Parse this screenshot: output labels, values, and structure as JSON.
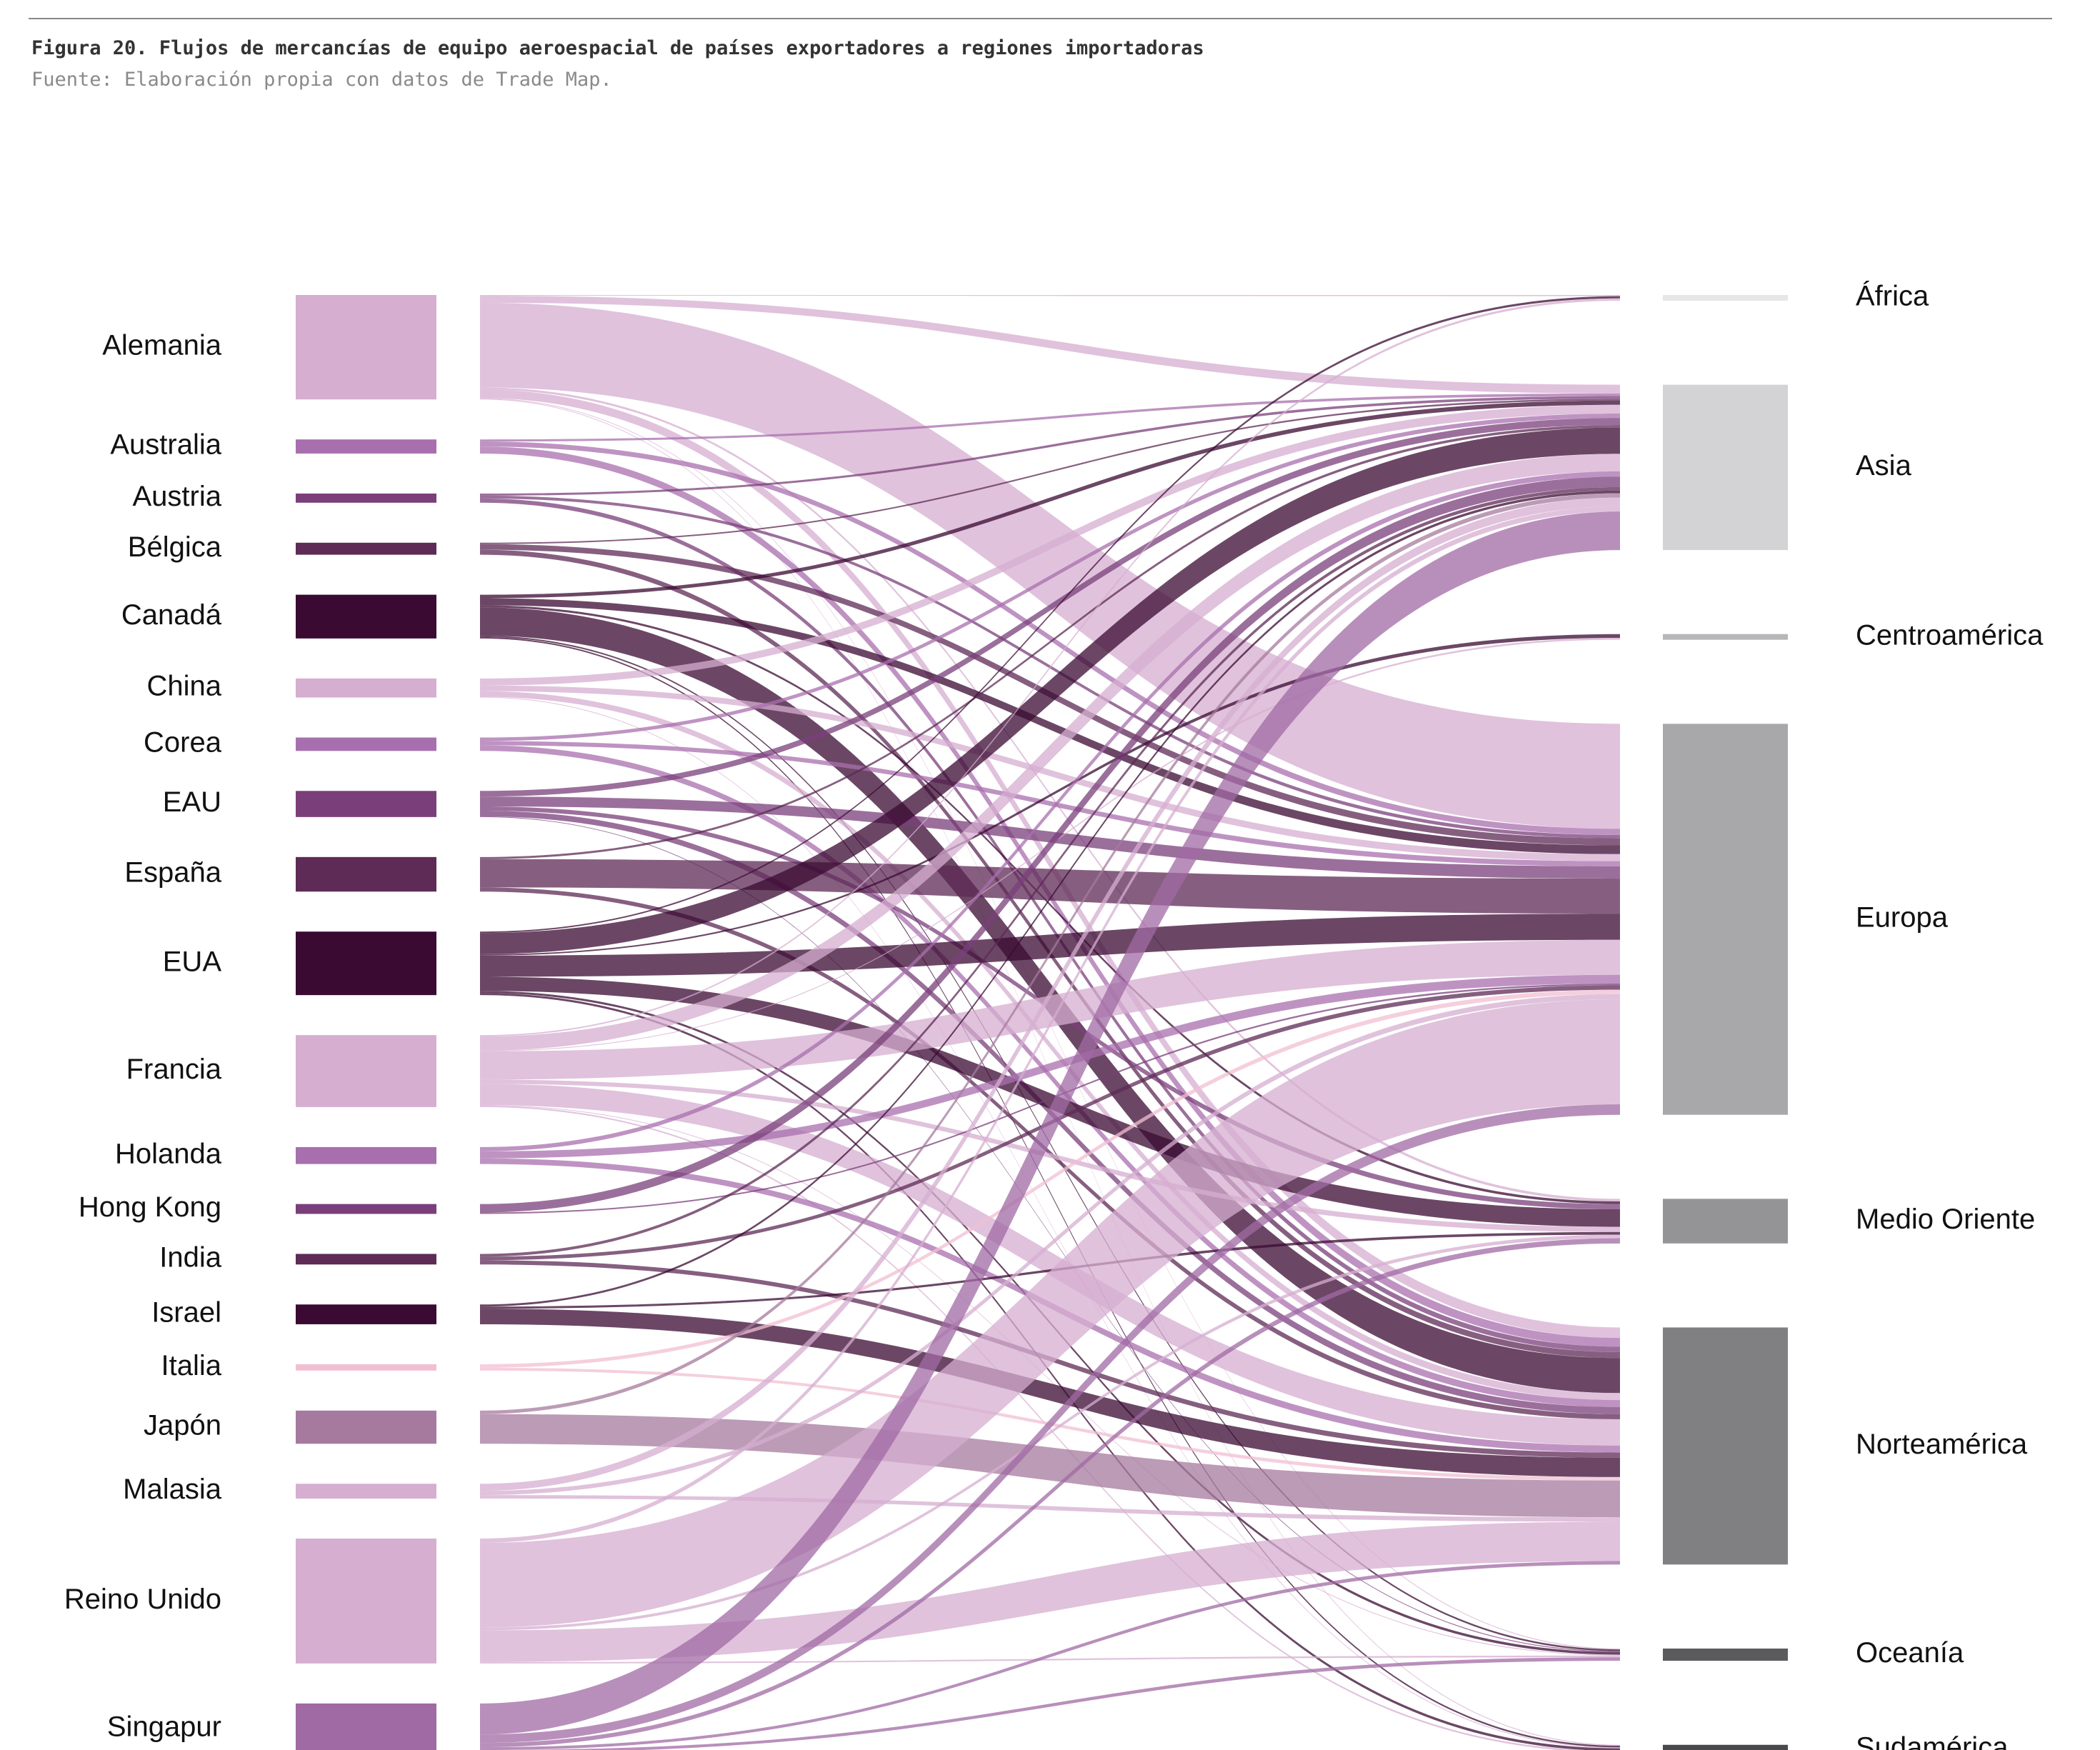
{
  "figure": {
    "title": "Figura 20. Flujos de mercancías de equipo aeroespacial de países exportadores a regiones importadoras",
    "source": "Fuente: Elaboración propia con datos de Trade Map."
  },
  "sources": [
    {
      "name": "Alemania",
      "color": "#d6aed0"
    },
    {
      "name": "Australia",
      "color": "#a86fae"
    },
    {
      "name": "Austria",
      "color": "#7a3f7a"
    },
    {
      "name": "Bélgica",
      "color": "#5e2a56"
    },
    {
      "name": "Canadá",
      "color": "#3a0a32"
    },
    {
      "name": "China",
      "color": "#d6aed0"
    },
    {
      "name": "Corea",
      "color": "#a86fae"
    },
    {
      "name": "EAU",
      "color": "#7a3f7a"
    },
    {
      "name": "España",
      "color": "#5e2a56"
    },
    {
      "name": "EUA",
      "color": "#3a0a32"
    },
    {
      "name": "Francia",
      "color": "#d6aed0"
    },
    {
      "name": "Holanda",
      "color": "#a86fae"
    },
    {
      "name": "Hong Kong",
      "color": "#7a3f7a"
    },
    {
      "name": "India",
      "color": "#5e2a56"
    },
    {
      "name": "Israel",
      "color": "#3a0a32"
    },
    {
      "name": "Italia",
      "color": "#f2bfd2"
    },
    {
      "name": "Japón",
      "color": "#a57a9e"
    },
    {
      "name": "Malasia",
      "color": "#d6aed0"
    },
    {
      "name": "Reino Unido",
      "color": "#d6aed0"
    },
    {
      "name": "Singapur",
      "color": "#a06aa4"
    }
  ],
  "targets": [
    {
      "name": "África",
      "color": "#e6e6e6"
    },
    {
      "name": "Asia",
      "color": "#d3d3d5"
    },
    {
      "name": "Centroamérica",
      "color": "#b7b7b9"
    },
    {
      "name": "Europa",
      "color": "#a8a8ab"
    },
    {
      "name": "Medio Oriente",
      "color": "#949497"
    },
    {
      "name": "Norteamérica",
      "color": "#808083"
    },
    {
      "name": "Oceanía",
      "color": "#5b5b5d"
    },
    {
      "name": "Sudamérica",
      "color": "#4a4a4c"
    }
  ],
  "flows": [
    {
      "source": "Alemania",
      "target": "África",
      "value": 1
    },
    {
      "source": "Alemania",
      "target": "Asia",
      "value": 10
    },
    {
      "source": "Alemania",
      "target": "Europa",
      "value": 120
    },
    {
      "source": "Alemania",
      "target": "Medio Oriente",
      "value": 3
    },
    {
      "source": "Alemania",
      "target": "Norteamérica",
      "value": 12
    },
    {
      "source": "Alemania",
      "target": "Oceanía",
      "value": 1
    },
    {
      "source": "Alemania",
      "target": "Sudamérica",
      "value": 1
    },
    {
      "source": "Australia",
      "target": "Asia",
      "value": 3
    },
    {
      "source": "Australia",
      "target": "Europa",
      "value": 7
    },
    {
      "source": "Australia",
      "target": "Norteamérica",
      "value": 10
    },
    {
      "source": "Austria",
      "target": "Asia",
      "value": 3
    },
    {
      "source": "Austria",
      "target": "Europa",
      "value": 4
    },
    {
      "source": "Austria",
      "target": "Norteamérica",
      "value": 6
    },
    {
      "source": "Bélgica",
      "target": "Asia",
      "value": 2
    },
    {
      "source": "Bélgica",
      "target": "Europa",
      "value": 8
    },
    {
      "source": "Bélgica",
      "target": "Norteamérica",
      "value": 7
    },
    {
      "source": "Canadá",
      "target": "Asia",
      "value": 5
    },
    {
      "source": "Canadá",
      "target": "Europa",
      "value": 10
    },
    {
      "source": "Canadá",
      "target": "Medio Oriente",
      "value": 3
    },
    {
      "source": "Canadá",
      "target": "Norteamérica",
      "value": 40
    },
    {
      "source": "Canadá",
      "target": "Oceanía",
      "value": 2
    },
    {
      "source": "Canadá",
      "target": "Sudamérica",
      "value": 2
    },
    {
      "source": "China",
      "target": "Asia",
      "value": 10
    },
    {
      "source": "China",
      "target": "Europa",
      "value": 8
    },
    {
      "source": "China",
      "target": "Norteamérica",
      "value": 8
    },
    {
      "source": "China",
      "target": "Sudamérica",
      "value": 1
    },
    {
      "source": "Corea",
      "target": "Asia",
      "value": 5
    },
    {
      "source": "Corea",
      "target": "Europa",
      "value": 6
    },
    {
      "source": "Corea",
      "target": "Norteamérica",
      "value": 8
    },
    {
      "source": "EAU",
      "target": "Asia",
      "value": 8
    },
    {
      "source": "EAU",
      "target": "Europa",
      "value": 14
    },
    {
      "source": "EAU",
      "target": "Medio Oriente",
      "value": 6
    },
    {
      "source": "EAU",
      "target": "Norteamérica",
      "value": 8
    },
    {
      "source": "EAU",
      "target": "Oceanía",
      "value": 1
    },
    {
      "source": "España",
      "target": "Asia",
      "value": 3
    },
    {
      "source": "España",
      "target": "Europa",
      "value": 40
    },
    {
      "source": "España",
      "target": "Norteamérica",
      "value": 6
    },
    {
      "source": "EUA",
      "target": "África",
      "value": 2
    },
    {
      "source": "EUA",
      "target": "Asia",
      "value": 30
    },
    {
      "source": "EUA",
      "target": "Centroamérica",
      "value": 2
    },
    {
      "source": "EUA",
      "target": "Europa",
      "value": 30
    },
    {
      "source": "EUA",
      "target": "Medio Oriente",
      "value": 20
    },
    {
      "source": "EUA",
      "target": "Oceanía",
      "value": 3
    },
    {
      "source": "EUA",
      "target": "Sudamérica",
      "value": 3
    },
    {
      "source": "Francia",
      "target": "África",
      "value": 2
    },
    {
      "source": "Francia",
      "target": "Asia",
      "value": 20
    },
    {
      "source": "Francia",
      "target": "Centroamérica",
      "value": 1
    },
    {
      "source": "Francia",
      "target": "Europa",
      "value": 40
    },
    {
      "source": "Francia",
      "target": "Medio Oriente",
      "value": 6
    },
    {
      "source": "Francia",
      "target": "Norteamérica",
      "value": 30
    },
    {
      "source": "Francia",
      "target": "Oceanía",
      "value": 1
    },
    {
      "source": "Francia",
      "target": "Sudamérica",
      "value": 2
    },
    {
      "source": "Holanda",
      "target": "Asia",
      "value": 6
    },
    {
      "source": "Holanda",
      "target": "Europa",
      "value": 10
    },
    {
      "source": "Holanda",
      "target": "Norteamérica",
      "value": 8
    },
    {
      "source": "Hong Kong",
      "target": "Asia",
      "value": 12
    },
    {
      "source": "Hong Kong",
      "target": "Europa",
      "value": 2
    },
    {
      "source": "India",
      "target": "Asia",
      "value": 4
    },
    {
      "source": "India",
      "target": "Europa",
      "value": 5
    },
    {
      "source": "India",
      "target": "Norteamérica",
      "value": 6
    },
    {
      "source": "Israel",
      "target": "Asia",
      "value": 3
    },
    {
      "source": "Israel",
      "target": "Medio Oriente",
      "value": 3
    },
    {
      "source": "Israel",
      "target": "Norteamérica",
      "value": 22
    },
    {
      "source": "Italia",
      "target": "Europa",
      "value": 5
    },
    {
      "source": "Italia",
      "target": "Norteamérica",
      "value": 4
    },
    {
      "source": "Japón",
      "target": "Asia",
      "value": 5
    },
    {
      "source": "Japón",
      "target": "Norteamérica",
      "value": 42
    },
    {
      "source": "Malasia",
      "target": "Asia",
      "value": 10
    },
    {
      "source": "Malasia",
      "target": "Europa",
      "value": 6
    },
    {
      "source": "Malasia",
      "target": "Norteamérica",
      "value": 5
    },
    {
      "source": "Reino Unido",
      "target": "Asia",
      "value": 6
    },
    {
      "source": "Reino Unido",
      "target": "Europa",
      "value": 120
    },
    {
      "source": "Reino Unido",
      "target": "Medio Oriente",
      "value": 4
    },
    {
      "source": "Reino Unido",
      "target": "Norteamérica",
      "value": 45
    },
    {
      "source": "Reino Unido",
      "target": "Oceanía",
      "value": 2
    },
    {
      "source": "Singapur",
      "target": "Asia",
      "value": 44
    },
    {
      "source": "Singapur",
      "target": "Europa",
      "value": 12
    },
    {
      "source": "Singapur",
      "target": "Medio Oriente",
      "value": 6
    },
    {
      "source": "Singapur",
      "target": "Norteamérica",
      "value": 4
    },
    {
      "source": "Singapur",
      "target": "Oceanía",
      "value": 4
    },
    {
      "source": "Singapur",
      "target": "Sudamérica",
      "value": 1
    }
  ]
}
